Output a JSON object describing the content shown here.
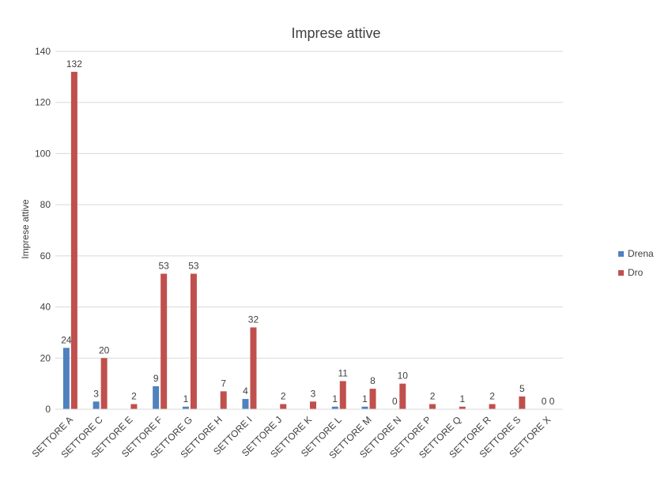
{
  "chart_data": {
    "type": "bar",
    "title": "Imprese attive",
    "ylabel": "Imprese attive",
    "xlabel": "",
    "ylim": [
      0,
      140
    ],
    "yticks": [
      0,
      20,
      40,
      60,
      80,
      100,
      120,
      140
    ],
    "grid": true,
    "legend_position": "right",
    "categories": [
      "SETTORE A",
      "SETTORE C",
      "SETTORE E",
      "SETTORE F",
      "SETTORE G",
      "SETTORE H",
      "SETTORE I",
      "SETTORE J",
      "SETTORE K",
      "SETTORE L",
      "SETTORE M",
      "SETTORE N",
      "SETTORE P",
      "SETTORE Q",
      "SETTORE R",
      "SETTORE S",
      "SETTORE X"
    ],
    "series": [
      {
        "name": "Drena",
        "color": "#4f81bd",
        "values": [
          24,
          3,
          null,
          9,
          1,
          null,
          4,
          null,
          null,
          1,
          1,
          0,
          null,
          null,
          null,
          null,
          0
        ],
        "labels": [
          "24",
          "3",
          "",
          "9",
          "1",
          "",
          "4",
          "",
          "",
          "1",
          "1",
          "0",
          "",
          "",
          "",
          "",
          "0"
        ]
      },
      {
        "name": "Dro",
        "color": "#c0504d",
        "values": [
          132,
          20,
          2,
          53,
          53,
          7,
          32,
          2,
          3,
          11,
          8,
          10,
          2,
          1,
          2,
          5,
          0
        ],
        "labels": [
          "132",
          "20",
          "2",
          "53",
          "53",
          "7",
          "32",
          "2",
          "3",
          "11",
          "8",
          "10",
          "2",
          "1",
          "2",
          "5",
          "0"
        ]
      }
    ]
  }
}
